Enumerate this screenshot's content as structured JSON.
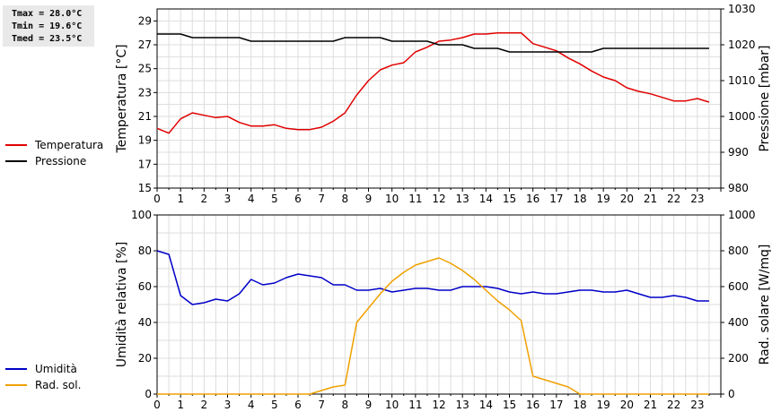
{
  "stats": {
    "tmax": "Tmax = 28.0°C",
    "tmin": "Tmin = 19.6°C",
    "tmed": "Tmed = 23.5°C"
  },
  "chart_data": [
    {
      "type": "line",
      "ylabel": "Temperatura [°C]",
      "y2label": "Pressione [mbar]",
      "xlim": [
        0,
        24
      ],
      "ylim": [
        15,
        30
      ],
      "y2lim": [
        980,
        1030
      ],
      "x_ticks": [
        "0",
        "1",
        "2",
        "3",
        "4",
        "5",
        "6",
        "7",
        "8",
        "9",
        "10",
        "11",
        "12",
        "13",
        "14",
        "15",
        "16",
        "17",
        "18",
        "19",
        "20",
        "21",
        "22",
        "23"
      ],
      "y_ticks": [
        15,
        17,
        19,
        21,
        23,
        25,
        27,
        29
      ],
      "y2_ticks": [
        980,
        990,
        1000,
        1010,
        1020,
        1030
      ],
      "grid": true,
      "legend_position": "left",
      "series": [
        {
          "name": "Temperatura",
          "axis": "left",
          "color": "#e00000",
          "x": [
            0,
            0.5,
            1,
            1.5,
            2,
            2.5,
            3,
            3.5,
            4,
            4.5,
            5,
            5.5,
            6,
            6.5,
            7,
            7.5,
            8,
            8.5,
            9,
            9.5,
            10,
            10.5,
            11,
            11.5,
            12,
            12.5,
            13,
            13.5,
            14,
            14.5,
            15,
            15.5,
            16,
            16.5,
            17,
            17.5,
            18,
            18.5,
            19,
            19.5,
            20,
            20.5,
            21,
            21.5,
            22,
            22.5,
            23,
            23.5
          ],
          "values": [
            20.0,
            19.6,
            20.8,
            21.3,
            21.1,
            20.9,
            21.0,
            20.5,
            20.2,
            20.2,
            20.3,
            20.0,
            19.9,
            19.9,
            20.1,
            20.6,
            21.3,
            22.8,
            24.0,
            24.9,
            25.3,
            25.5,
            26.4,
            26.8,
            27.3,
            27.4,
            27.6,
            27.9,
            27.9,
            28.0,
            28.0,
            28.0,
            27.1,
            26.8,
            26.5,
            25.9,
            25.4,
            24.8,
            24.3,
            24.0,
            23.4,
            23.1,
            22.9,
            22.6,
            22.3,
            22.3,
            22.5,
            22.2
          ]
        },
        {
          "name": "Pressione",
          "axis": "right",
          "color": "#000000",
          "x": [
            0,
            1,
            1.5,
            3.5,
            4,
            7.5,
            8,
            9.5,
            10,
            11.5,
            12,
            13,
            13.5,
            14.5,
            15,
            18.5,
            19,
            23.5
          ],
          "values": [
            1023,
            1023,
            1022,
            1022,
            1021,
            1021,
            1022,
            1022,
            1021,
            1021,
            1020,
            1020,
            1019,
            1019,
            1018,
            1018,
            1019,
            1019
          ]
        }
      ]
    },
    {
      "type": "line",
      "ylabel": "Umidità relativa [%]",
      "y2label": "Rad. solare [W/mq]",
      "xlim": [
        0,
        24
      ],
      "ylim": [
        0,
        100
      ],
      "y2lim": [
        0,
        1000
      ],
      "x_ticks": [
        "0",
        "1",
        "2",
        "3",
        "4",
        "5",
        "6",
        "7",
        "8",
        "9",
        "10",
        "11",
        "12",
        "13",
        "14",
        "15",
        "16",
        "17",
        "18",
        "19",
        "20",
        "21",
        "22",
        "23"
      ],
      "y_ticks": [
        0,
        20,
        40,
        60,
        80,
        100
      ],
      "y2_ticks": [
        0,
        200,
        400,
        600,
        800,
        1000
      ],
      "grid": true,
      "legend_position": "left",
      "series": [
        {
          "name": "Umidità",
          "axis": "left",
          "color": "#0000c8",
          "x": [
            0,
            0.5,
            1,
            1.5,
            2,
            2.5,
            3,
            3.5,
            4,
            4.5,
            5,
            5.5,
            6,
            6.5,
            7,
            7.5,
            8,
            8.5,
            9,
            9.5,
            10,
            10.5,
            11,
            11.5,
            12,
            12.5,
            13,
            13.5,
            14,
            14.5,
            15,
            15.5,
            16,
            16.5,
            17,
            17.5,
            18,
            18.5,
            19,
            19.5,
            20,
            20.5,
            21,
            21.5,
            22,
            22.5,
            23,
            23.5
          ],
          "values": [
            80,
            78,
            55,
            50,
            51,
            53,
            52,
            56,
            64,
            61,
            62,
            65,
            67,
            66,
            65,
            61,
            61,
            58,
            58,
            59,
            57,
            58,
            59,
            59,
            58,
            58,
            60,
            60,
            60,
            59,
            57,
            56,
            57,
            56,
            56,
            57,
            58,
            58,
            57,
            57,
            58,
            56,
            54,
            54,
            55,
            54,
            52,
            52
          ]
        },
        {
          "name": "Rad. sol.",
          "axis": "right",
          "color": "#f0a000",
          "x": [
            0,
            6.5,
            7,
            7.5,
            8,
            8.5,
            9,
            9.5,
            10,
            10.5,
            11,
            11.5,
            12,
            12.5,
            13,
            13.5,
            14,
            14.5,
            15,
            15.5,
            16,
            16.5,
            17,
            17.5,
            18,
            23.5
          ],
          "values": [
            0,
            0,
            20,
            40,
            50,
            400,
            480,
            560,
            630,
            680,
            720,
            740,
            760,
            730,
            690,
            640,
            580,
            520,
            470,
            410,
            100,
            80,
            60,
            40,
            0,
            0
          ]
        }
      ]
    }
  ]
}
